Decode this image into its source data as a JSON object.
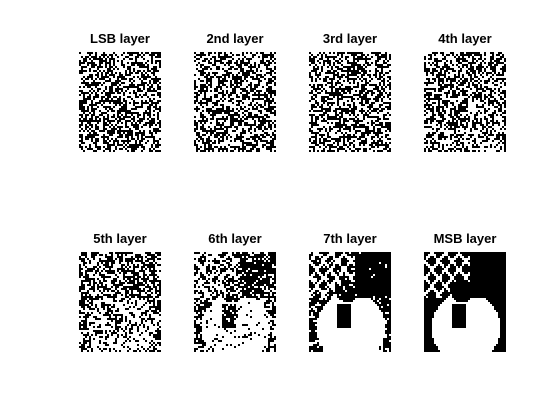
{
  "panels": [
    {
      "title": "LSB layer",
      "level": 0
    },
    {
      "title": "2nd layer",
      "level": 1
    },
    {
      "title": "3rd layer",
      "level": 2
    },
    {
      "title": "4th layer",
      "level": 3
    },
    {
      "title": "5th layer",
      "level": 4
    },
    {
      "title": "6th layer",
      "level": 5
    },
    {
      "title": "7th layer",
      "level": 6
    },
    {
      "title": "MSB layer",
      "level": 7
    }
  ],
  "colors": {
    "on": "#ffffff",
    "off": "#000000"
  }
}
